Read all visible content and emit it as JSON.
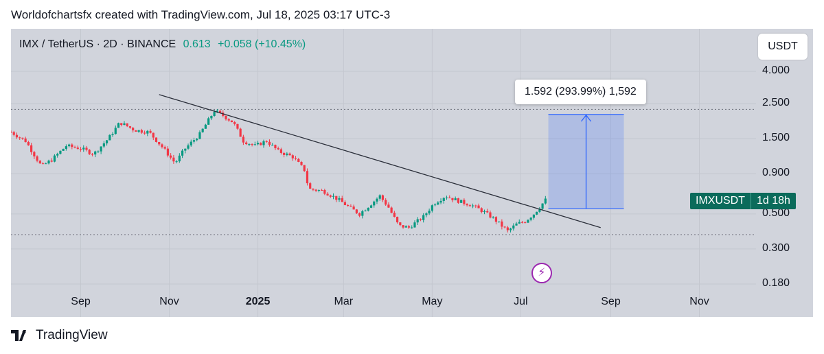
{
  "header": {
    "caption": "Worldofchartsfx created with TradingView.com, Jul 18, 2025 03:17 UTC-3"
  },
  "symbol": {
    "label": "IMX / TetherUS · 2D · BINANCE",
    "price": "0.613",
    "change": "+0.058 (+10.45%)"
  },
  "currency": "USDT",
  "ticker_tag": {
    "name": "IMXUSDT",
    "countdown": "1d 18h"
  },
  "measure": {
    "label": "1.592 (293.99%) 1,592"
  },
  "brand": {
    "name": "TradingView"
  },
  "colors": {
    "background": "#d1d4dc",
    "up": "#089981",
    "down": "#f23645",
    "trendline": "#2a2e39",
    "measure": "#2962ff",
    "tag": "#0b6b5b"
  },
  "icons": {
    "lightning": "lightning-icon",
    "logo": "tradingview-logo-icon"
  },
  "chart_data": {
    "type": "candlestick",
    "scale": "log",
    "y_ticks": [
      "4.000",
      "2.500",
      "1.500",
      "0.900",
      "0.500",
      "0.300",
      "0.180"
    ],
    "y_tick_values": [
      4.0,
      2.5,
      1.5,
      0.9,
      0.5,
      0.3,
      0.18
    ],
    "x_ticks": [
      {
        "label": "Sep",
        "date": "2024-09-01"
      },
      {
        "label": "Nov",
        "date": "2024-11-01"
      },
      {
        "label": "2025",
        "date": "2025-01-01",
        "bold": true
      },
      {
        "label": "Mar",
        "date": "2025-03-01"
      },
      {
        "label": "May",
        "date": "2025-05-01"
      },
      {
        "label": "Jul",
        "date": "2025-07-01"
      },
      {
        "label": "Sep",
        "date": "2025-09-01"
      },
      {
        "label": "Nov",
        "date": "2025-11-01"
      }
    ],
    "price_path": [
      {
        "date": "2024-07-15",
        "close": 1.65
      },
      {
        "date": "2024-07-25",
        "close": 1.45
      },
      {
        "date": "2024-08-05",
        "close": 1.0
      },
      {
        "date": "2024-08-12",
        "close": 1.1
      },
      {
        "date": "2024-08-22",
        "close": 1.35
      },
      {
        "date": "2024-09-01",
        "close": 1.3
      },
      {
        "date": "2024-09-10",
        "close": 1.2
      },
      {
        "date": "2024-09-20",
        "close": 1.5
      },
      {
        "date": "2024-09-28",
        "close": 1.9
      },
      {
        "date": "2024-10-08",
        "close": 1.7
      },
      {
        "date": "2024-10-18",
        "close": 1.65
      },
      {
        "date": "2024-10-28",
        "close": 1.3
      },
      {
        "date": "2024-11-05",
        "close": 1.05
      },
      {
        "date": "2024-11-12",
        "close": 1.3
      },
      {
        "date": "2024-11-22",
        "close": 1.6
      },
      {
        "date": "2024-12-02",
        "close": 2.25
      },
      {
        "date": "2024-12-08",
        "close": 2.1
      },
      {
        "date": "2024-12-15",
        "close": 1.9
      },
      {
        "date": "2024-12-22",
        "close": 1.45
      },
      {
        "date": "2024-12-30",
        "close": 1.35
      },
      {
        "date": "2025-01-07",
        "close": 1.45
      },
      {
        "date": "2025-01-15",
        "close": 1.25
      },
      {
        "date": "2025-01-25",
        "close": 1.15
      },
      {
        "date": "2025-02-02",
        "close": 0.95
      },
      {
        "date": "2025-02-05",
        "close": 0.72
      },
      {
        "date": "2025-02-15",
        "close": 0.7
      },
      {
        "date": "2025-02-25",
        "close": 0.62
      },
      {
        "date": "2025-03-05",
        "close": 0.55
      },
      {
        "date": "2025-03-12",
        "close": 0.5
      },
      {
        "date": "2025-03-20",
        "close": 0.58
      },
      {
        "date": "2025-03-26",
        "close": 0.65
      },
      {
        "date": "2025-04-01",
        "close": 0.55
      },
      {
        "date": "2025-04-08",
        "close": 0.42
      },
      {
        "date": "2025-04-15",
        "close": 0.41
      },
      {
        "date": "2025-04-25",
        "close": 0.48
      },
      {
        "date": "2025-05-02",
        "close": 0.58
      },
      {
        "date": "2025-05-10",
        "close": 0.65
      },
      {
        "date": "2025-05-20",
        "close": 0.6
      },
      {
        "date": "2025-05-28",
        "close": 0.57
      },
      {
        "date": "2025-06-05",
        "close": 0.52
      },
      {
        "date": "2025-06-12",
        "close": 0.47
      },
      {
        "date": "2025-06-18",
        "close": 0.42
      },
      {
        "date": "2025-06-22",
        "close": 0.39
      },
      {
        "date": "2025-06-28",
        "close": 0.43
      },
      {
        "date": "2025-07-04",
        "close": 0.45
      },
      {
        "date": "2025-07-10",
        "close": 0.5
      },
      {
        "date": "2025-07-14",
        "close": 0.553
      },
      {
        "date": "2025-07-18",
        "close": 0.613
      }
    ],
    "trendline": [
      {
        "date": "2024-10-25",
        "value": 2.85
      },
      {
        "date": "2025-08-25",
        "value": 0.41
      }
    ],
    "horizontal_levels": [
      2.3,
      0.37
    ],
    "measure_range": {
      "from_date": "2025-07-20",
      "to_date": "2025-09-10",
      "low": 0.54,
      "high": 2.132,
      "change": 1.592,
      "change_pct": 293.99
    }
  }
}
